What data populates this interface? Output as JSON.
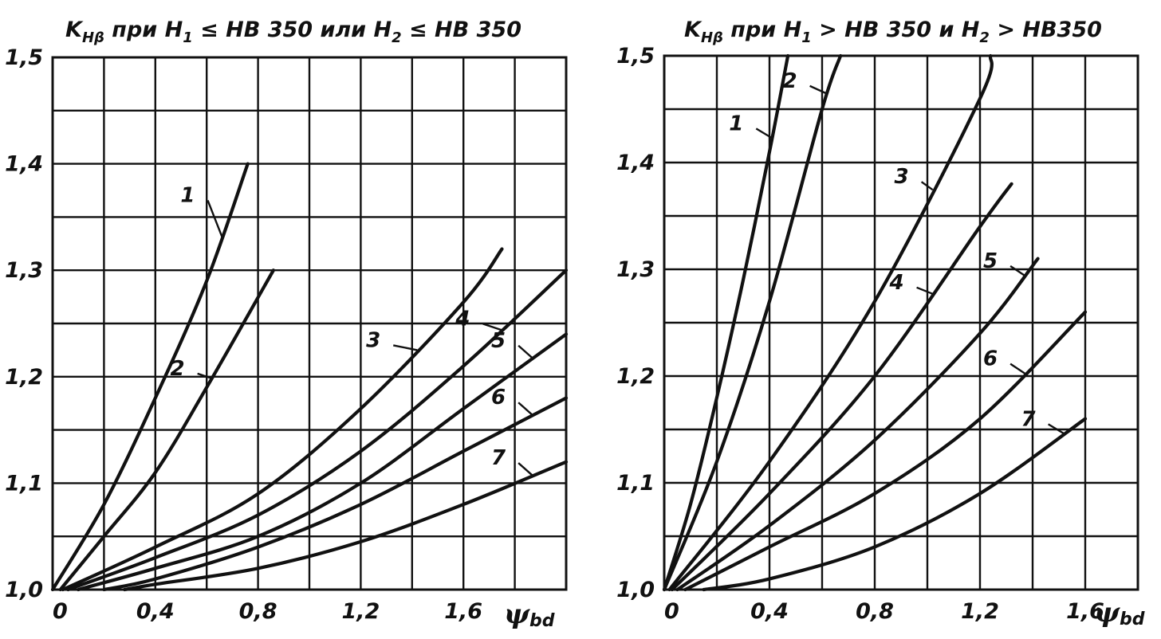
{
  "chart_data": [
    {
      "type": "line",
      "title": "K",
      "title_sub": "Hβ",
      "title_rest": " при H",
      "title_sub2": "1",
      "title_rest2": " ≤ HB 350  или  H",
      "title_sub3": "2",
      "title_rest3": " ≤ HB 350",
      "xlabel_main": "ψ",
      "xlabel_sub": "bd",
      "xlim": [
        0,
        2.0
      ],
      "ylim": [
        1.0,
        1.5
      ],
      "x_ticks": [
        0,
        0.4,
        0.8,
        1.2,
        1.6
      ],
      "x_tick_labels": [
        "0",
        "0,4",
        "0,8",
        "1,2",
        "1,6"
      ],
      "y_ticks": [
        1.0,
        1.1,
        1.2,
        1.3,
        1.4,
        1.5
      ],
      "y_tick_labels": [
        "1,0",
        "1,1",
        "1,2",
        "1,3",
        "1,4",
        "1,5"
      ],
      "grid": true,
      "series": [
        {
          "name": "1",
          "x": [
            0,
            0.2,
            0.4,
            0.6,
            0.76
          ],
          "y": [
            1.0,
            1.08,
            1.18,
            1.29,
            1.4
          ]
        },
        {
          "name": "2",
          "x": [
            0.03,
            0.2,
            0.4,
            0.6,
            0.86
          ],
          "y": [
            1.0,
            1.05,
            1.11,
            1.19,
            1.3
          ]
        },
        {
          "name": "3",
          "x": [
            0.04,
            0.4,
            0.8,
            1.2,
            1.6,
            1.75
          ],
          "y": [
            1.0,
            1.04,
            1.09,
            1.17,
            1.27,
            1.32
          ]
        },
        {
          "name": "4",
          "x": [
            0.06,
            0.4,
            0.8,
            1.2,
            1.6,
            2.0
          ],
          "y": [
            1.0,
            1.03,
            1.07,
            1.13,
            1.21,
            1.3
          ]
        },
        {
          "name": "5",
          "x": [
            0.1,
            0.4,
            0.8,
            1.2,
            1.6,
            2.0
          ],
          "y": [
            1.0,
            1.02,
            1.05,
            1.1,
            1.17,
            1.24
          ]
        },
        {
          "name": "6",
          "x": [
            0.2,
            0.4,
            0.8,
            1.2,
            1.6,
            2.0
          ],
          "y": [
            1.0,
            1.01,
            1.04,
            1.08,
            1.13,
            1.18
          ]
        },
        {
          "name": "7",
          "x": [
            0.28,
            0.4,
            0.8,
            1.2,
            1.6,
            2.0
          ],
          "y": [
            1.0,
            1.005,
            1.02,
            1.045,
            1.08,
            1.12
          ]
        }
      ]
    },
    {
      "type": "line",
      "title": "K",
      "title_sub": "Hβ",
      "title_rest": " при H",
      "title_sub2": "1",
      "title_rest2": " > HB 350  и  H",
      "title_sub3": "2",
      "title_rest3": " > HB350",
      "xlabel_main": "ψ",
      "xlabel_sub": "bd",
      "xlim": [
        0,
        1.8
      ],
      "ylim": [
        1.0,
        1.5
      ],
      "x_ticks": [
        0,
        0.4,
        0.8,
        1.2,
        1.6
      ],
      "x_tick_labels": [
        "0",
        "0,4",
        "0,8",
        "1,2",
        "1,6"
      ],
      "y_ticks": [
        1.0,
        1.1,
        1.2,
        1.3,
        1.4,
        1.5
      ],
      "y_tick_labels": [
        "1,0",
        "1,1",
        "1,2",
        "1,3",
        "1,4",
        "1,5"
      ],
      "grid": true,
      "series": [
        {
          "name": "1",
          "x": [
            0,
            0.1,
            0.2,
            0.3,
            0.4,
            0.47
          ],
          "y": [
            1.0,
            1.08,
            1.18,
            1.29,
            1.41,
            1.5
          ]
        },
        {
          "name": "2",
          "x": [
            0,
            0.2,
            0.4,
            0.6,
            0.67
          ],
          "y": [
            1.0,
            1.12,
            1.27,
            1.45,
            1.5
          ]
        },
        {
          "name": "3",
          "x": [
            0.02,
            0.4,
            0.8,
            1.2,
            1.24
          ],
          "y": [
            1.0,
            1.12,
            1.27,
            1.46,
            1.5
          ]
        },
        {
          "name": "4",
          "x": [
            0.03,
            0.4,
            0.8,
            1.2,
            1.32
          ],
          "y": [
            1.0,
            1.09,
            1.2,
            1.34,
            1.38
          ]
        },
        {
          "name": "5",
          "x": [
            0.05,
            0.4,
            0.8,
            1.2,
            1.42
          ],
          "y": [
            1.0,
            1.06,
            1.14,
            1.24,
            1.31
          ]
        },
        {
          "name": "6",
          "x": [
            0.08,
            0.4,
            0.8,
            1.2,
            1.6
          ],
          "y": [
            1.0,
            1.04,
            1.09,
            1.16,
            1.26
          ]
        },
        {
          "name": "7",
          "x": [
            0.15,
            0.4,
            0.8,
            1.2,
            1.6
          ],
          "y": [
            1.0,
            1.01,
            1.04,
            1.09,
            1.16
          ]
        }
      ]
    }
  ]
}
